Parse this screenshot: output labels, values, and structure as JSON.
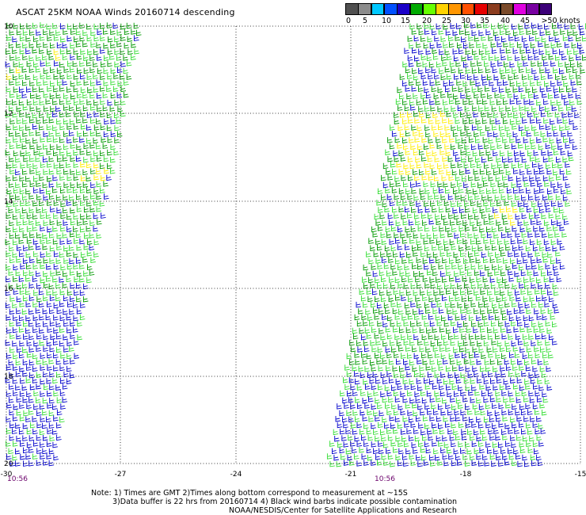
{
  "title": "ASCAT 25KM NOAA Winds 20160714 descending",
  "legend": {
    "labels": [
      "0",
      "5",
      "10",
      "15",
      "20",
      "25",
      "30",
      "35",
      "40",
      "45",
      ">50 knots"
    ],
    "colors": [
      "#505050",
      "#8c8c8c",
      "#00c8ff",
      "#0050ff",
      "#1a00c8",
      "#00aa00",
      "#66ff00",
      "#ffd200",
      "#ff9600",
      "#ff5000",
      "#e60000",
      "#8b3c1e",
      "#7a4a2a",
      "#e000e0",
      "#7800a0",
      "#3c0078"
    ]
  },
  "map": {
    "lon_labels": [
      "-30",
      "-27",
      "-24",
      "-21",
      "-18",
      "-15"
    ],
    "lat_labels": [
      "10",
      "12",
      "14",
      "16",
      "18",
      "20"
    ],
    "swath_times": [
      "10:56",
      "10:56"
    ],
    "barb_colors": {
      "blue": "#0000cc",
      "lightgreen": "#33dd33",
      "green": "#009900",
      "yellow": "#ffee00"
    }
  },
  "notes": [
    "Note: 1) Times are GMT 2)Times along bottom correspond to measurement at ~15S",
    "3)Data buffer is 22 hrs from 20160714 4) Black wind barbs indicate possible contamination",
    "NOAA/NESDIS/Center for Satellite Applications and Research"
  ]
}
